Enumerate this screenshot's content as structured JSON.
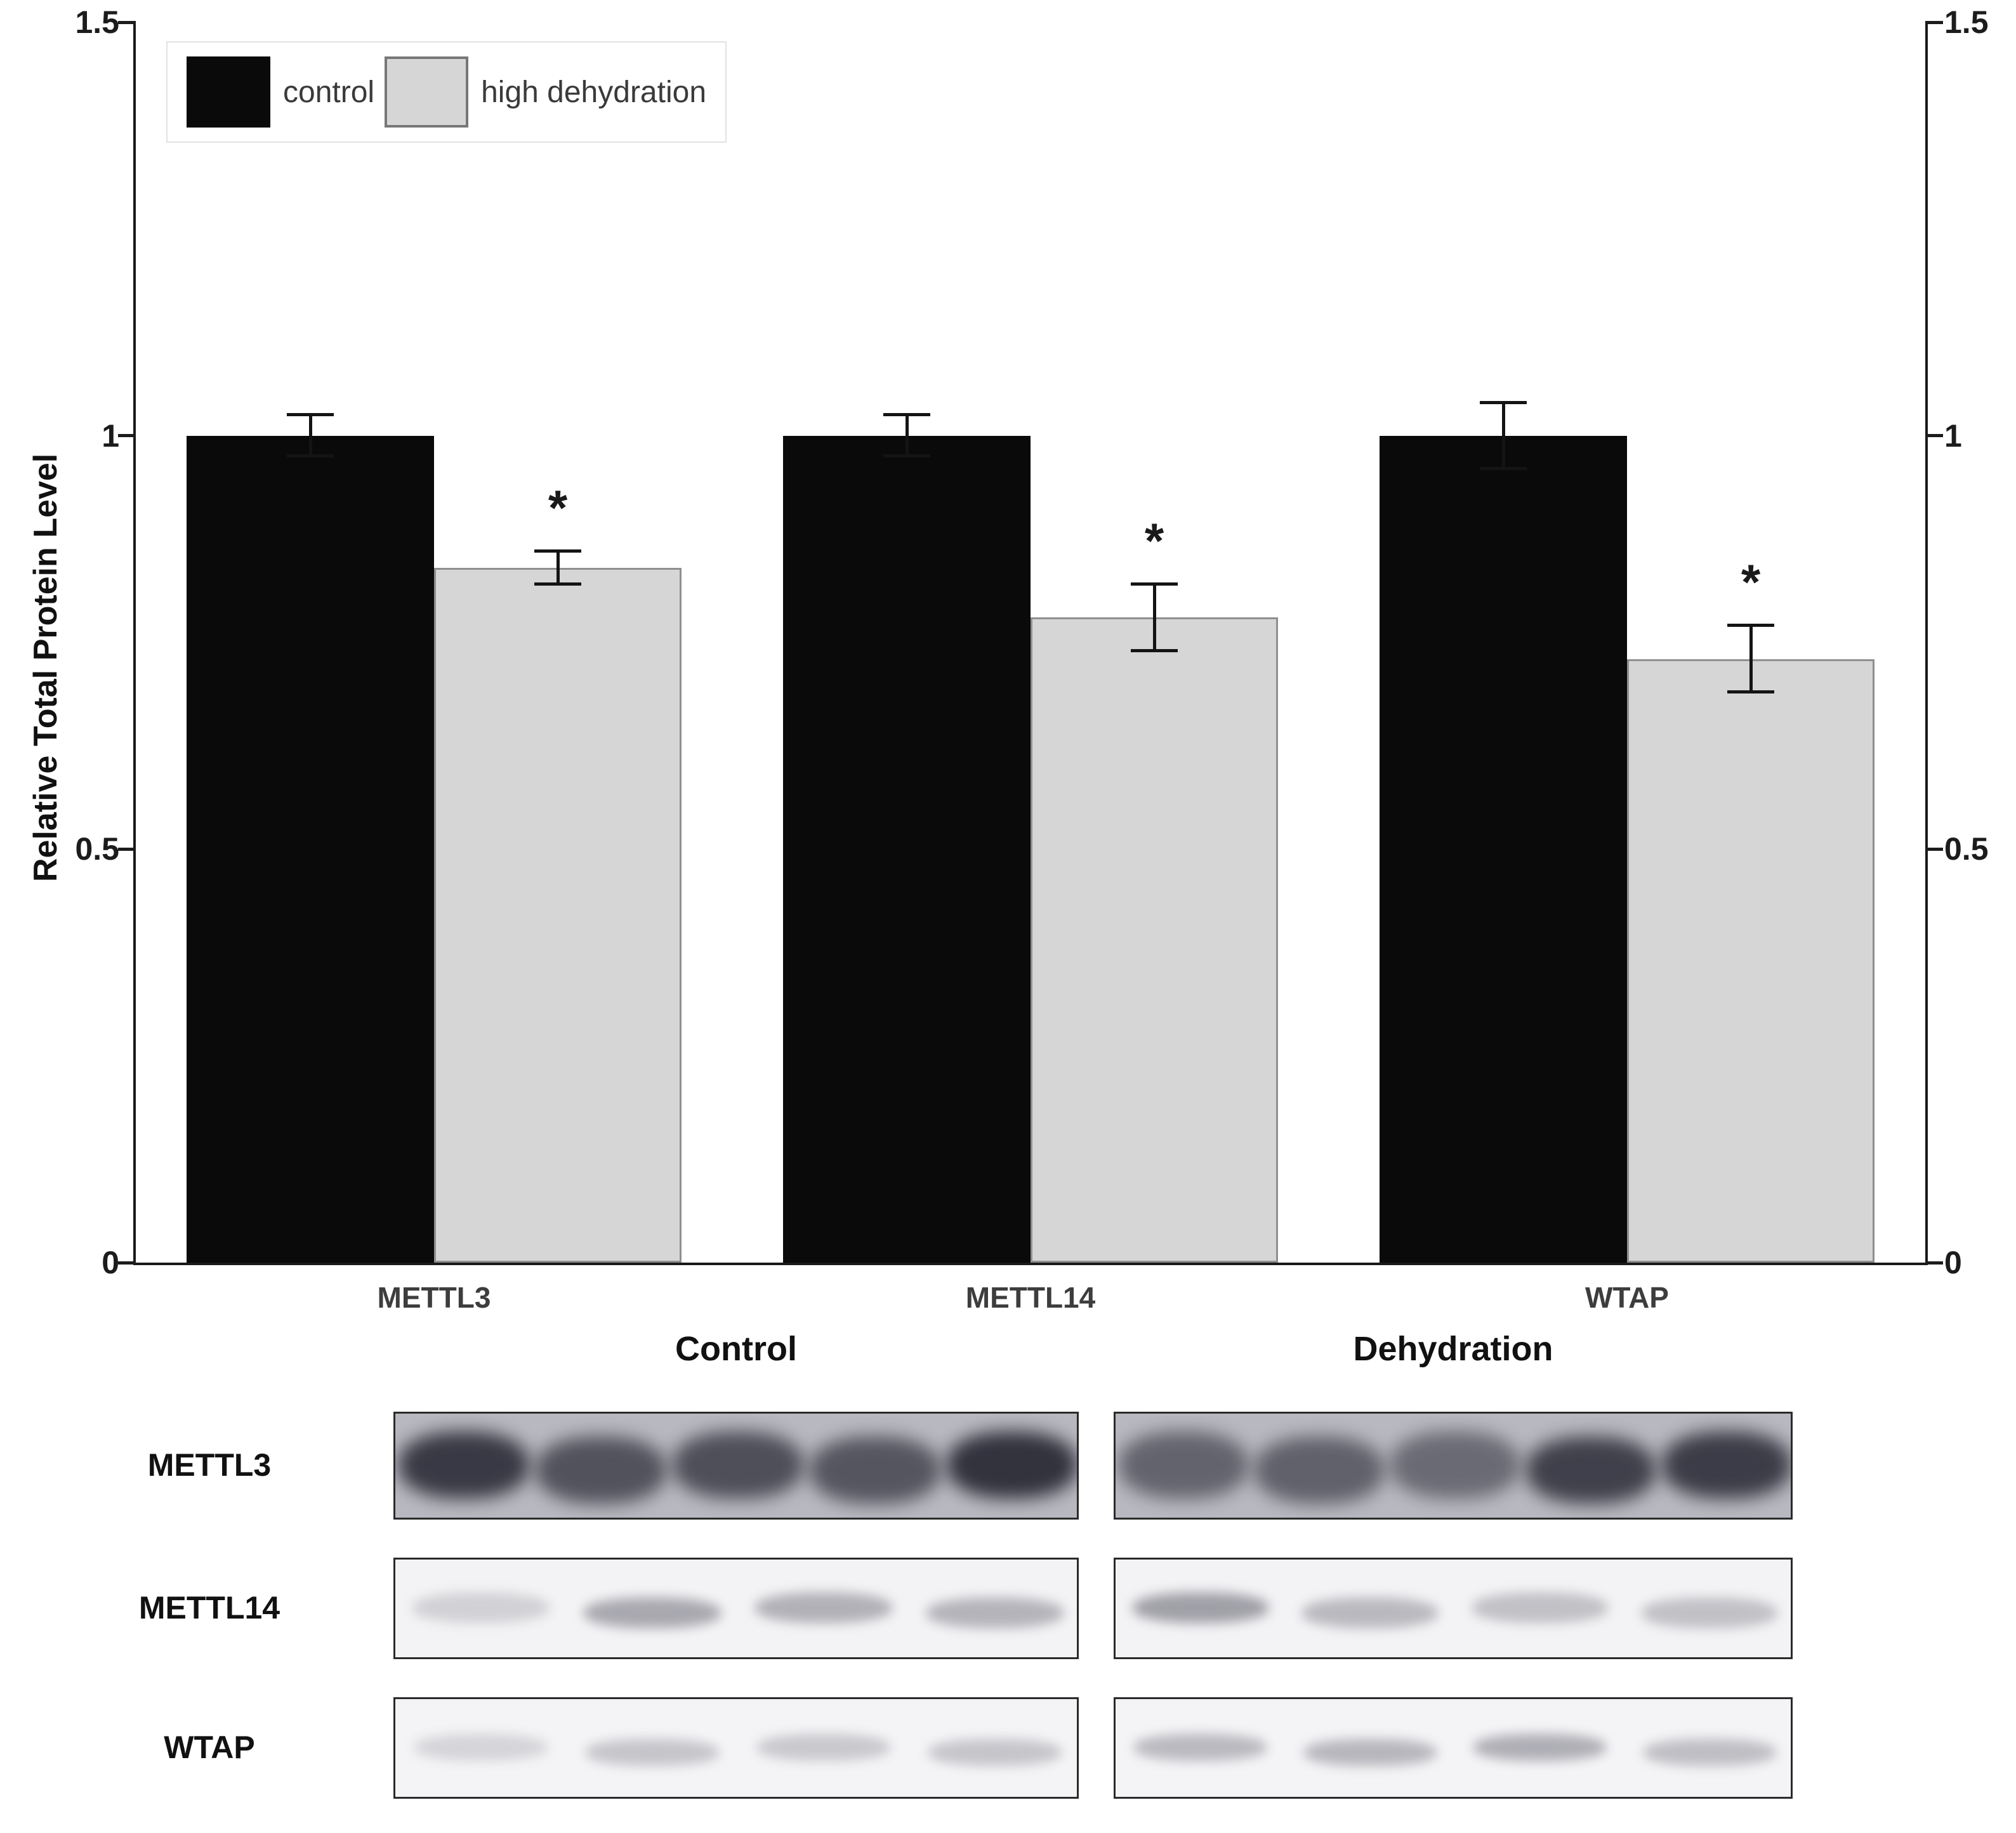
{
  "accent_colors": {
    "control_bar": "#0a0a0a",
    "dehydration_bar": "#d6d6d6",
    "axis": "#1a1a1a"
  },
  "chart_data": {
    "type": "bar",
    "title": "",
    "ylabel": "Relative Total Protein Level",
    "xlabel": "",
    "ylim": [
      0,
      1.5
    ],
    "yticks": [
      0,
      0.5,
      1,
      1.5
    ],
    "ytick_labels": [
      "0",
      "0.5",
      "1",
      "1.5"
    ],
    "grid": false,
    "legend_position": "top-left",
    "categories": [
      "METTL3",
      "METTL14",
      "WTAP"
    ],
    "series": [
      {
        "name": "control",
        "color": "#0a0a0a",
        "values": [
          1.0,
          1.0,
          1.0
        ],
        "errors": [
          0.025,
          0.025,
          0.04
        ],
        "significance": [
          "",
          "",
          ""
        ]
      },
      {
        "name": "high dehydration",
        "color": "#d6d6d6",
        "values": [
          0.84,
          0.78,
          0.73
        ],
        "errors": [
          0.02,
          0.04,
          0.04
        ],
        "significance": [
          "*",
          "*",
          "*"
        ]
      }
    ]
  },
  "blots": {
    "column_headers": [
      "Control",
      "Dehydration"
    ],
    "rows": [
      {
        "label": "METTL3",
        "panel_bg": "#b8b8c0",
        "band_color": "#2c2c38",
        "band_height_pct": 62,
        "band_width_factor": 0.95,
        "blur": 14,
        "panels": [
          {
            "lanes": [
              0.9,
              0.72,
              0.75,
              0.7,
              0.95
            ]
          },
          {
            "lanes": [
              0.6,
              0.62,
              0.55,
              0.85,
              0.88
            ]
          }
        ]
      },
      {
        "label": "METTL14",
        "panel_bg": "#f3f3f5",
        "band_color": "#4e4e5a",
        "band_height_pct": 30,
        "band_width_factor": 0.8,
        "blur": 9,
        "panels": [
          {
            "lanes": [
              0.2,
              0.45,
              0.4,
              0.38
            ]
          },
          {
            "lanes": [
              0.5,
              0.35,
              0.3,
              0.3
            ]
          }
        ]
      },
      {
        "label": "WTAP",
        "panel_bg": "#f4f4f6",
        "band_color": "#5a5a66",
        "band_height_pct": 26,
        "band_width_factor": 0.78,
        "blur": 9,
        "panels": [
          {
            "lanes": [
              0.2,
              0.3,
              0.28,
              0.3
            ]
          },
          {
            "lanes": [
              0.38,
              0.4,
              0.45,
              0.35
            ]
          }
        ]
      }
    ]
  }
}
